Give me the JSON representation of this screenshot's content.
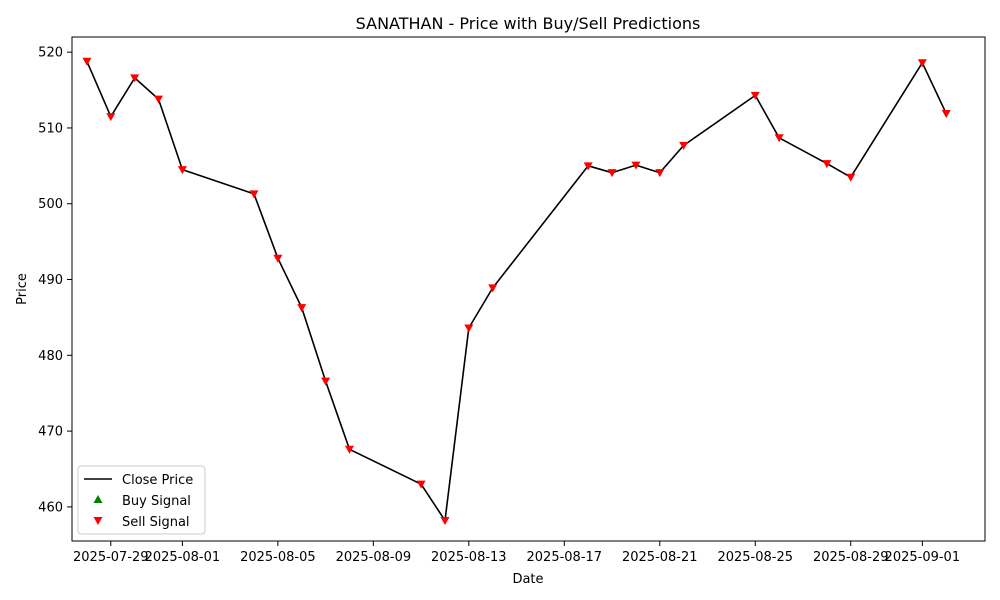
{
  "chart_data": {
    "type": "line",
    "title": "SANATHAN - Price with Buy/Sell Predictions",
    "xlabel": "Date",
    "ylabel": "Price",
    "x_ticks": [
      "2025-07-29",
      "2025-08-01",
      "2025-08-05",
      "2025-08-09",
      "2025-08-13",
      "2025-08-17",
      "2025-08-21",
      "2025-08-25",
      "2025-08-29",
      "2025-09-01"
    ],
    "y_ticks": [
      460,
      470,
      480,
      490,
      500,
      510,
      520
    ],
    "ylim": [
      455.5,
      522.0
    ],
    "xlim": [
      "2025-07-27T09:00",
      "2025-09-03T15:00"
    ],
    "grid": false,
    "legend_position": "lower-left",
    "series": [
      {
        "name": "Close Price",
        "color": "#000000",
        "points": [
          {
            "date": "2025-07-28",
            "value": 518.8
          },
          {
            "date": "2025-07-29",
            "value": 511.5
          },
          {
            "date": "2025-07-30",
            "value": 516.6
          },
          {
            "date": "2025-07-31",
            "value": 513.8
          },
          {
            "date": "2025-08-01",
            "value": 504.5
          },
          {
            "date": "2025-08-04",
            "value": 501.3
          },
          {
            "date": "2025-08-05",
            "value": 492.8
          },
          {
            "date": "2025-08-06",
            "value": 486.3
          },
          {
            "date": "2025-08-07",
            "value": 476.6
          },
          {
            "date": "2025-08-08",
            "value": 467.6
          },
          {
            "date": "2025-08-11",
            "value": 463.0
          },
          {
            "date": "2025-08-12",
            "value": 458.2
          },
          {
            "date": "2025-08-13",
            "value": 483.6
          },
          {
            "date": "2025-08-14",
            "value": 488.9
          },
          {
            "date": "2025-08-18",
            "value": 505.0
          },
          {
            "date": "2025-08-19",
            "value": 504.1
          },
          {
            "date": "2025-08-20",
            "value": 505.1
          },
          {
            "date": "2025-08-21",
            "value": 504.1
          },
          {
            "date": "2025-08-22",
            "value": 507.7
          },
          {
            "date": "2025-08-25",
            "value": 514.3
          },
          {
            "date": "2025-08-26",
            "value": 508.7
          },
          {
            "date": "2025-08-28",
            "value": 505.3
          },
          {
            "date": "2025-08-29",
            "value": 503.5
          },
          {
            "date": "2025-09-01",
            "value": 518.6
          },
          {
            "date": "2025-09-02",
            "value": 511.9
          }
        ]
      },
      {
        "name": "Buy Signal",
        "color": "#008000",
        "marker": "triangle-up",
        "points": []
      },
      {
        "name": "Sell Signal",
        "color": "#ff0000",
        "marker": "triangle-down",
        "points": [
          {
            "date": "2025-07-28",
            "value": 518.8
          },
          {
            "date": "2025-07-29",
            "value": 511.5
          },
          {
            "date": "2025-07-30",
            "value": 516.6
          },
          {
            "date": "2025-07-31",
            "value": 513.8
          },
          {
            "date": "2025-08-01",
            "value": 504.5
          },
          {
            "date": "2025-08-04",
            "value": 501.3
          },
          {
            "date": "2025-08-05",
            "value": 492.8
          },
          {
            "date": "2025-08-06",
            "value": 486.3
          },
          {
            "date": "2025-08-07",
            "value": 476.6
          },
          {
            "date": "2025-08-08",
            "value": 467.6
          },
          {
            "date": "2025-08-11",
            "value": 463.0
          },
          {
            "date": "2025-08-12",
            "value": 458.2
          },
          {
            "date": "2025-08-13",
            "value": 483.6
          },
          {
            "date": "2025-08-14",
            "value": 488.9
          },
          {
            "date": "2025-08-18",
            "value": 505.0
          },
          {
            "date": "2025-08-19",
            "value": 504.1
          },
          {
            "date": "2025-08-20",
            "value": 505.1
          },
          {
            "date": "2025-08-21",
            "value": 504.1
          },
          {
            "date": "2025-08-22",
            "value": 507.7
          },
          {
            "date": "2025-08-25",
            "value": 514.3
          },
          {
            "date": "2025-08-26",
            "value": 508.7
          },
          {
            "date": "2025-08-28",
            "value": 505.3
          },
          {
            "date": "2025-08-29",
            "value": 503.5
          },
          {
            "date": "2025-09-01",
            "value": 518.6
          },
          {
            "date": "2025-09-02",
            "value": 511.9
          }
        ]
      }
    ]
  }
}
